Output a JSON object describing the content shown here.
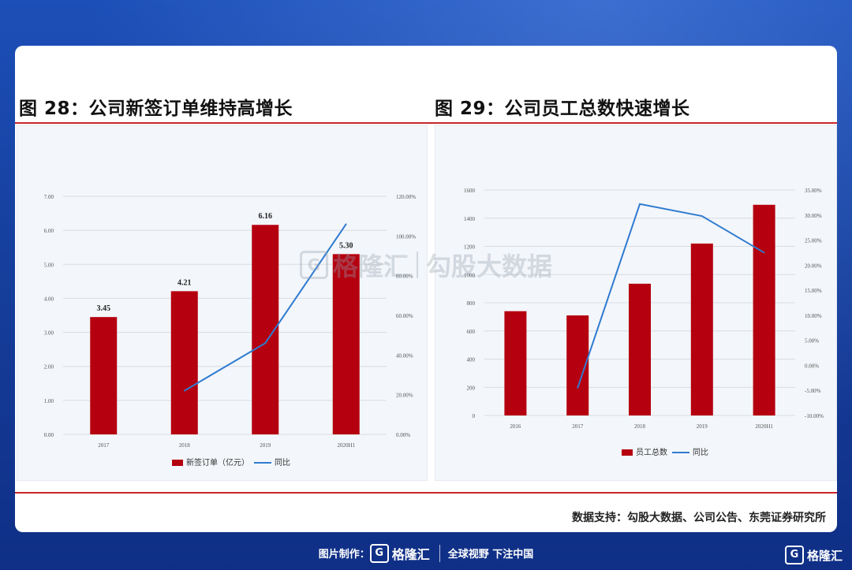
{
  "titles": {
    "left": "图 28：公司新签订单维持高增长",
    "right": "图 29：公司员工总数快速增长"
  },
  "source": "数据支持：勾股大数据、公司公告、东莞证券研究所",
  "watermark": {
    "brand": "格隆汇",
    "badge": "G",
    "text": "勾股大数据"
  },
  "footer": {
    "made_by": "图片制作：",
    "brand": "格隆汇",
    "badge": "G",
    "slogan": "全球视野 下注中国",
    "corner_brand": "格隆汇"
  },
  "colors": {
    "bar": "#b5000f",
    "line": "#2f7bd0",
    "accent": "#c8262a"
  },
  "chart_data": [
    {
      "type": "bar",
      "categories": [
        "2017",
        "2018",
        "2019",
        "2020H1"
      ],
      "series": [
        {
          "name": "新签订单（亿元）",
          "type": "bar",
          "values": [
            3.45,
            4.21,
            6.16,
            5.3
          ],
          "axis": "left"
        },
        {
          "name": "同比",
          "type": "line",
          "values": [
            null,
            0.22,
            0.46,
            1.06
          ],
          "axis": "right"
        }
      ],
      "data_labels": [
        "3.45",
        "4.21",
        "6.16",
        "5.30"
      ],
      "y_left": {
        "min": 0,
        "max": 7,
        "ticks": [
          "0.00",
          "1.00",
          "2.00",
          "3.00",
          "4.00",
          "5.00",
          "6.00",
          "7.00"
        ]
      },
      "y_right": {
        "min": 0,
        "max": 1.2,
        "ticks": [
          "0.00%",
          "20.00%",
          "40.00%",
          "60.00%",
          "80.00%",
          "100.00%",
          "120.00%"
        ]
      },
      "grid": true,
      "legend": "bottom"
    },
    {
      "type": "bar",
      "categories": [
        "2016",
        "2017",
        "2018",
        "2019",
        "2020H1"
      ],
      "series": [
        {
          "name": "员工总数",
          "type": "bar",
          "values": [
            740,
            710,
            935,
            1220,
            1495
          ],
          "axis": "left"
        },
        {
          "name": "同比",
          "type": "line",
          "values": [
            null,
            -0.045,
            0.322,
            0.298,
            0.225
          ],
          "axis": "right"
        }
      ],
      "y_left": {
        "min": 0,
        "max": 1600,
        "ticks": [
          "0",
          "200",
          "400",
          "600",
          "800",
          "1000",
          "1200",
          "1400",
          "1600"
        ]
      },
      "y_right": {
        "min": -0.1,
        "max": 0.35,
        "ticks": [
          "-10.00%",
          "-5.00%",
          "0.00%",
          "5.00%",
          "10.00%",
          "15.00%",
          "20.00%",
          "25.00%",
          "30.00%",
          "35.00%"
        ]
      },
      "grid": true,
      "legend": "bottom"
    }
  ]
}
